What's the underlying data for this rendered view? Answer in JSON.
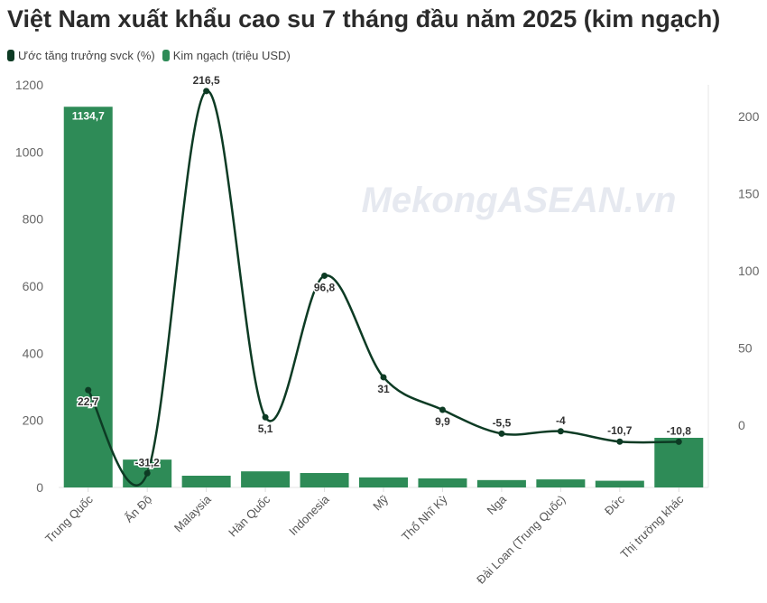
{
  "title": "Việt Nam xuất khẩu cao su 7 tháng đầu năm 2025 (kim ngạch)",
  "watermark": "MekongASEAN.vn",
  "chart_data": {
    "type": "bar+line",
    "title": "Việt Nam xuất khẩu cao su 7 tháng đầu năm 2025 (kim ngạch)",
    "categories": [
      "Trung Quốc",
      "Ấn Độ",
      "Malaysia",
      "Hàn Quốc",
      "Indonesia",
      "Mỹ",
      "Thổ Nhĩ Kỳ",
      "Nga",
      "Đài Loan (Trung Quốc)",
      "Đức",
      "Thị trường khác"
    ],
    "series": [
      {
        "name": "Ước tăng trưởng svck (%)",
        "type": "line",
        "axis": "right",
        "color": "#0d3b24",
        "values": [
          22.7,
          -31.2,
          216.5,
          5.1,
          96.8,
          31,
          9.9,
          -5.5,
          -4,
          -10.7,
          -10.8
        ],
        "labels": [
          "22,7",
          "-31,2",
          "216,5",
          "5,1",
          "96,8",
          "31",
          "9,9",
          "-5,5",
          "-4",
          "-10,7",
          "-10,8"
        ]
      },
      {
        "name": "Kim ngạch (triệu USD)",
        "type": "bar",
        "axis": "left",
        "color": "#2e8b57",
        "values": [
          1134.7,
          83,
          35,
          48,
          43,
          30,
          27,
          22,
          24,
          20,
          148
        ],
        "labels": [
          "1134,7",
          "",
          "",
          "",
          "",
          "",
          "",
          "",
          "",
          "",
          ""
        ]
      }
    ],
    "left_axis": {
      "ylim": [
        0,
        1200
      ],
      "ticks": [
        0,
        200,
        400,
        600,
        800,
        1000,
        1200
      ]
    },
    "right_axis": {
      "ylim": [
        -40.4,
        220.5
      ],
      "ticks": [
        0,
        50,
        100,
        150,
        200
      ]
    },
    "legend": "top-left",
    "grid": false
  }
}
